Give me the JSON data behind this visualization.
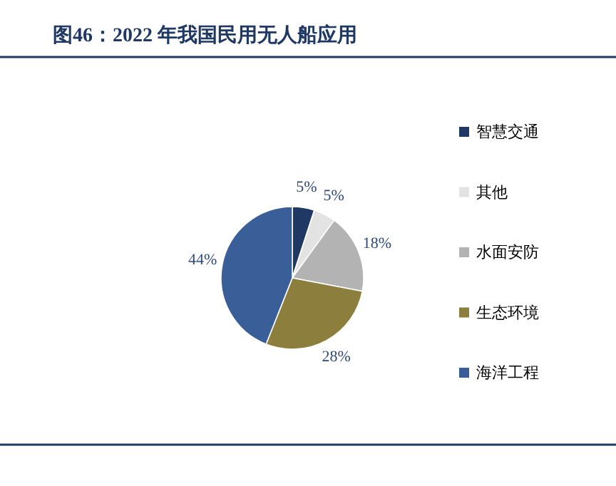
{
  "chart_data": {
    "type": "pie",
    "title": "图46：2022 年我国民用无人船应用",
    "categories": [
      "智慧交通",
      "其他",
      "水面安防",
      "生态环境",
      "海洋工程"
    ],
    "values": [
      5,
      5,
      18,
      28,
      44
    ],
    "value_labels": [
      "5%",
      "5%",
      "18%",
      "28%",
      "44%"
    ],
    "colors": [
      "#1f3864",
      "#e3e3e3",
      "#b3b3b3",
      "#8c7e3c",
      "#3a5f98"
    ],
    "legend": "right"
  }
}
